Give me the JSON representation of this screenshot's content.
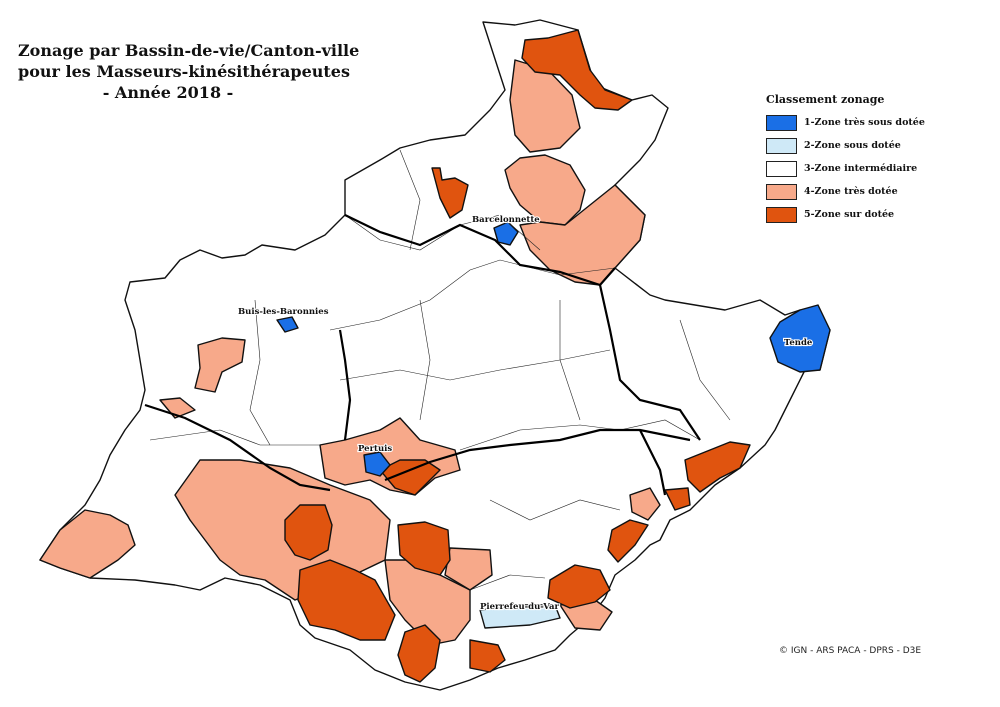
{
  "title": {
    "line1": "Zonage par Bassin-de-vie/Canton-ville",
    "line2": "pour les Masseurs-kinésithérapeutes",
    "line3": "- Année 2018 -"
  },
  "legend": {
    "title": "Classement zonage",
    "items": [
      {
        "label": "1-Zone très sous dotée",
        "color": "#1a6fe6"
      },
      {
        "label": "2-Zone sous dotée",
        "color": "#cfe9f7"
      },
      {
        "label": "3-Zone intermédiaire",
        "color": "#ffffff"
      },
      {
        "label": "4-Zone très dotée",
        "color": "#f7a98a"
      },
      {
        "label": "5-Zone sur dotée",
        "color": "#e0540f"
      }
    ]
  },
  "places": {
    "barcelonnette": "Barcelonnette",
    "buis": "Buis-les-Baronnies",
    "tende": "Tende",
    "pertuis": "Pertuis",
    "pierrefeu": "Pierrefeu-du-Var"
  },
  "credit": "© IGN - ARS PACA - DPRS - D3E"
}
